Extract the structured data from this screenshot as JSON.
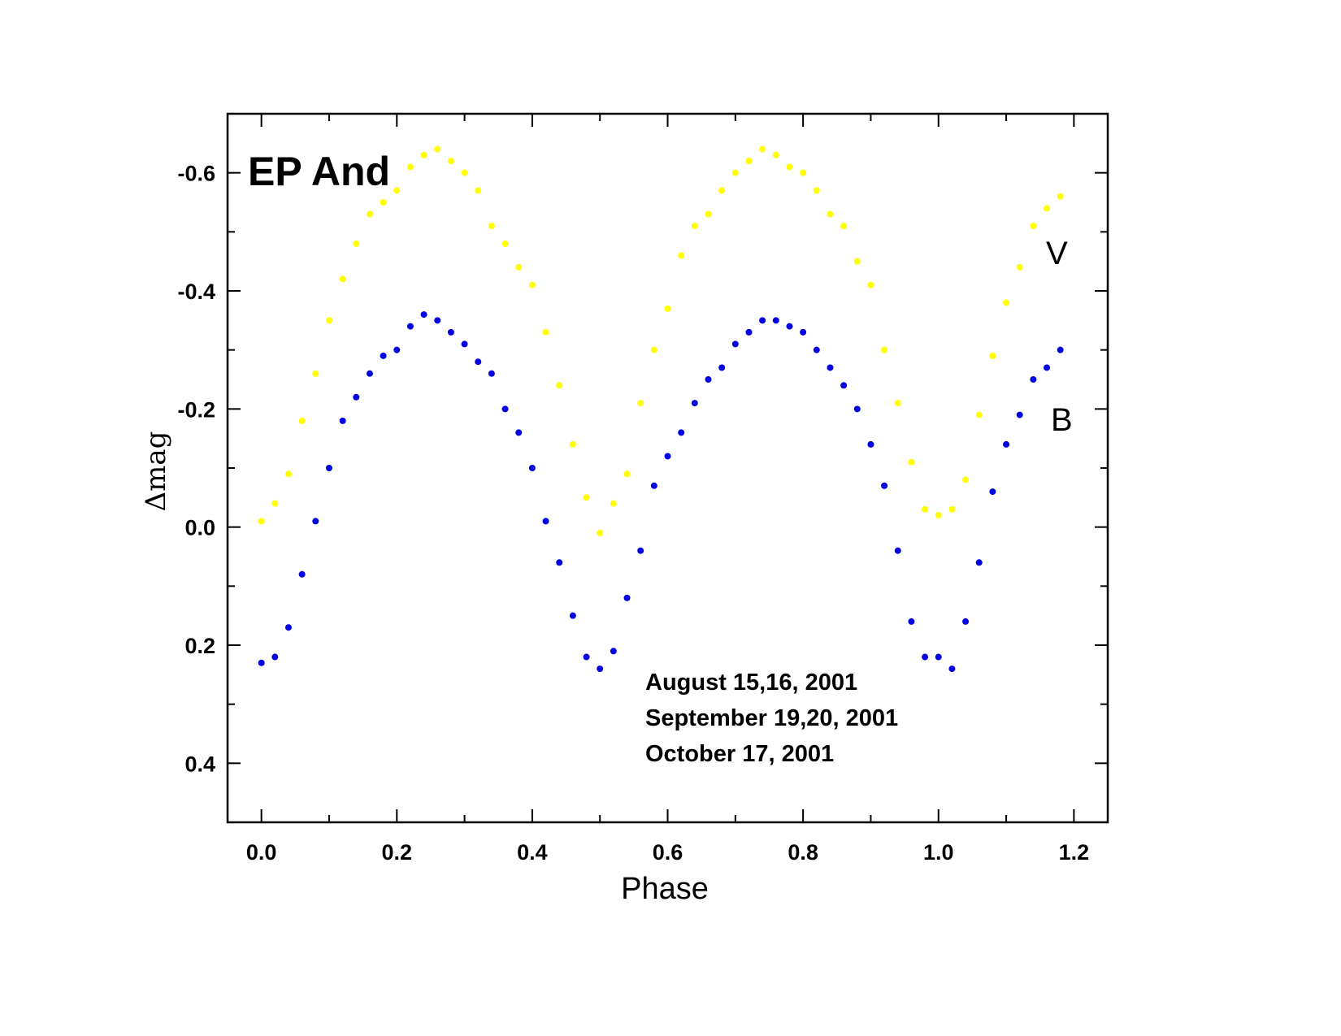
{
  "chart_data": {
    "type": "scatter",
    "title": "EP And",
    "xlabel": "Phase",
    "ylabel": "Δmag",
    "xlim": [
      -0.05,
      1.25
    ],
    "ylim": [
      0.5,
      -0.7
    ],
    "y_inverted": true,
    "xticks": [
      "0.0",
      "0.2",
      "0.4",
      "0.6",
      "0.8",
      "1.0",
      "1.2"
    ],
    "xtick_values": [
      0,
      0.2,
      0.4,
      0.6,
      0.8,
      1.0,
      1.2
    ],
    "yticks": [
      "-0.6",
      "-0.4",
      "-0.2",
      "0.0",
      "0.2",
      "0.4"
    ],
    "ytick_values": [
      -0.6,
      -0.4,
      -0.2,
      0.0,
      0.2,
      0.4
    ],
    "grid": false,
    "annotations": [
      "August 15,16, 2001",
      "September 19,20, 2001",
      "October 17, 2001"
    ],
    "x": [
      0.0,
      0.02,
      0.04,
      0.06,
      0.08,
      0.1,
      0.12,
      0.14,
      0.16,
      0.18,
      0.2,
      0.22,
      0.24,
      0.26,
      0.28,
      0.3,
      0.32,
      0.34,
      0.36,
      0.38,
      0.4,
      0.42,
      0.44,
      0.46,
      0.48,
      0.5,
      0.52,
      0.54,
      0.56,
      0.58,
      0.6,
      0.62,
      0.64,
      0.66,
      0.68,
      0.7,
      0.72,
      0.74,
      0.76,
      0.78,
      0.8,
      0.82,
      0.84,
      0.86,
      0.88,
      0.9,
      0.92,
      0.94,
      0.96,
      0.98,
      1.0,
      1.02,
      1.04,
      1.06,
      1.08,
      1.1,
      1.12,
      1.14,
      1.16,
      1.18
    ],
    "series": [
      {
        "name": "V",
        "color": "#ffff00",
        "values": [
          -0.01,
          -0.04,
          -0.09,
          -0.18,
          -0.26,
          -0.35,
          -0.42,
          -0.48,
          -0.53,
          -0.55,
          -0.57,
          -0.61,
          -0.63,
          -0.64,
          -0.62,
          -0.6,
          -0.57,
          -0.51,
          -0.48,
          -0.44,
          -0.41,
          -0.33,
          -0.24,
          -0.14,
          -0.05,
          0.01,
          -0.04,
          -0.09,
          -0.21,
          -0.3,
          -0.37,
          -0.46,
          -0.51,
          -0.53,
          -0.57,
          -0.6,
          -0.62,
          -0.64,
          -0.63,
          -0.61,
          -0.6,
          -0.57,
          -0.53,
          -0.51,
          -0.45,
          -0.41,
          -0.3,
          -0.21,
          -0.11,
          -0.03,
          -0.02,
          -0.03,
          -0.08,
          -0.19,
          -0.29,
          -0.38,
          -0.44,
          -0.51,
          -0.54,
          -0.56
        ]
      },
      {
        "name": "B",
        "color": "#0000e0",
        "values": [
          0.23,
          0.22,
          0.17,
          0.08,
          -0.01,
          -0.1,
          -0.18,
          -0.22,
          -0.26,
          -0.29,
          -0.3,
          -0.34,
          -0.36,
          -0.35,
          -0.33,
          -0.31,
          -0.28,
          -0.26,
          -0.2,
          -0.16,
          -0.1,
          -0.01,
          0.06,
          0.15,
          0.22,
          0.24,
          0.21,
          0.12,
          0.04,
          -0.07,
          -0.12,
          -0.16,
          -0.21,
          -0.25,
          -0.27,
          -0.31,
          -0.33,
          -0.35,
          -0.35,
          -0.34,
          -0.33,
          -0.3,
          -0.27,
          -0.24,
          -0.2,
          -0.14,
          -0.07,
          0.04,
          0.16,
          0.22,
          0.22,
          0.24,
          0.16,
          0.06,
          -0.06,
          -0.14,
          -0.19,
          -0.25,
          -0.27,
          -0.3
        ]
      }
    ]
  }
}
